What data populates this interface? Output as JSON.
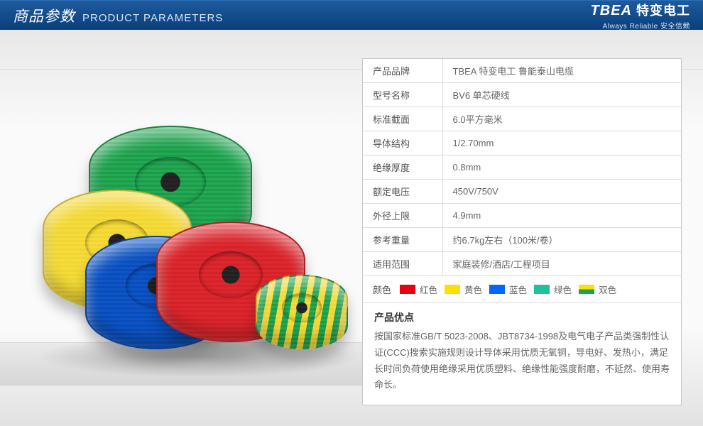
{
  "header": {
    "title_zh": "商品参数",
    "title_en": "PRODUCT PARAMETERS",
    "brand_logo": "TBEA",
    "brand_zh": "特变电工",
    "tagline": "Always Reliable  安全信赖"
  },
  "specs": {
    "rows": [
      {
        "label": "产品品牌",
        "value": "TBEA 特变电工 鲁能泰山电缆"
      },
      {
        "label": "型号名称",
        "value": "BV6 单芯硬线"
      },
      {
        "label": "标准截面",
        "value": "6.0平方毫米"
      },
      {
        "label": "导体结构",
        "value": "1/2.70mm"
      },
      {
        "label": "绝缘厚度",
        "value": "0.8mm"
      },
      {
        "label": "额定电压",
        "value": "450V/750V"
      },
      {
        "label": "外径上限",
        "value": "4.9mm"
      },
      {
        "label": "参考重量",
        "value": "约6.7kg左右（100米/卷）"
      },
      {
        "label": "适用范围",
        "value": "家庭装修/酒店/工程项目"
      }
    ]
  },
  "colors": {
    "label": "颜色",
    "items": [
      {
        "name": "红色",
        "hex": "#e60012",
        "class": "sw-red"
      },
      {
        "name": "黄色",
        "hex": "#ffe100",
        "class": "sw-yellow"
      },
      {
        "name": "蓝色",
        "hex": "#0068ff",
        "class": "sw-blue"
      },
      {
        "name": "绿色",
        "hex": "#1fc19a",
        "class": "sw-green"
      },
      {
        "name": "双色",
        "hex": "dual",
        "class": "sw-dual"
      }
    ]
  },
  "advantage": {
    "title": "产品优点",
    "body": "按国家标准GB/T 5023-2008、JBT8734-1998及电气电子产品类强制性认证(CCC)搜索实施规则设计导体采用优质无氧铜，导电好、发热小，满足长时间负荷使用绝缘采用优质塑料、绝缘性能强度耐磨，不延然、使用寿命长。"
  },
  "palette": {
    "header_gradient_top": "#1e5a9e",
    "header_gradient_bottom": "#0b3f7a",
    "panel_border": "#c8c8c8",
    "cell_border": "#dcdcdc",
    "text_primary": "#555555",
    "text_secondary": "#666666",
    "background_top": "#e8e8e8",
    "background_bottom": "#e2e2e2"
  }
}
